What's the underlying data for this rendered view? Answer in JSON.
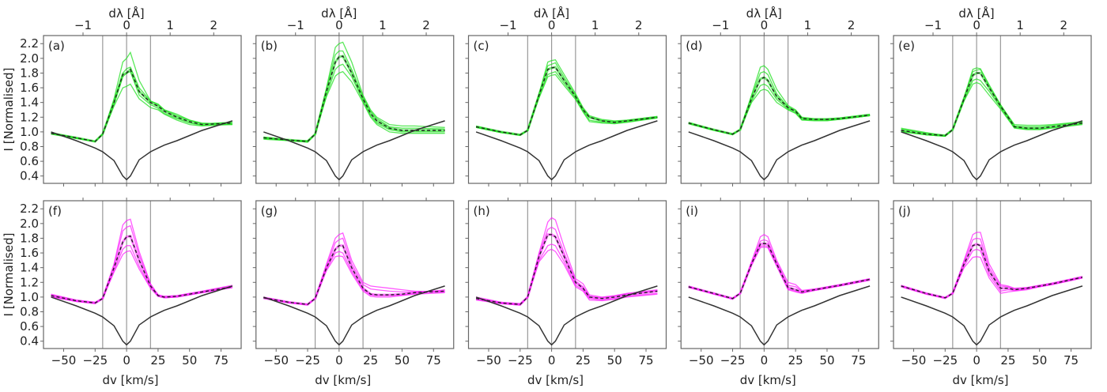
{
  "chart_data": {
    "type": "line",
    "layout": "2 rows x 5 columns of panels",
    "xlabel": "dv [km/s]",
    "ylabel": "I [Normalised]",
    "top_xlabel": "dλ [Å]",
    "xlim": [
      -66,
      91
    ],
    "ylim": [
      0.3,
      2.31
    ],
    "x_ticks": [
      -50,
      -25,
      0,
      25,
      50,
      75
    ],
    "x_tick_labels": [
      "−50",
      "−25",
      "0",
      "25",
      "50",
      "75"
    ],
    "top_ticks": [
      -1,
      0,
      1,
      2
    ],
    "top_tick_labels": [
      "−1",
      "0",
      "1",
      "2"
    ],
    "top_axis_km_s_per_angstrom": 34.6,
    "y_ticks": [
      0.4,
      0.6,
      0.8,
      1.0,
      1.2,
      1.4,
      1.6,
      1.8,
      2.0,
      2.2
    ],
    "y_tick_labels": [
      "0.4",
      "0.6",
      "0.8",
      "1.0",
      "1.2",
      "1.4",
      "1.6",
      "1.8",
      "2.0",
      "2.2"
    ],
    "vertical_lines_dv": [
      -19,
      0,
      19
    ],
    "grid": false,
    "colors": {
      "top_row_profiles": "#22e022",
      "bottom_row_profiles": "#ff22ff",
      "mean": "#222222",
      "reference": "#333333",
      "vlines": "#999999"
    },
    "dv": [
      -60,
      -40,
      -25,
      -19,
      -10,
      -3,
      0,
      3,
      10,
      19,
      25,
      30,
      40,
      50,
      60,
      84
    ],
    "reference": [
      1.0,
      0.88,
      0.78,
      0.73,
      0.61,
      0.4,
      0.35,
      0.4,
      0.62,
      0.73,
      0.78,
      0.82,
      0.88,
      0.95,
      1.02,
      1.15
    ],
    "panels": [
      {
        "label": "(a)",
        "row": 0,
        "mean": [
          0.98,
          0.92,
          0.87,
          0.97,
          1.4,
          1.78,
          1.8,
          1.85,
          1.55,
          1.4,
          1.35,
          1.28,
          1.2,
          1.14,
          1.1,
          1.12
        ],
        "profiles": [
          [
            0.99,
            0.92,
            0.87,
            0.97,
            1.45,
            1.95,
            2.0,
            2.08,
            1.7,
            1.42,
            1.37,
            1.3,
            1.22,
            1.16,
            1.12,
            1.1
          ],
          [
            0.97,
            0.91,
            0.87,
            0.97,
            1.35,
            1.6,
            1.62,
            1.65,
            1.45,
            1.33,
            1.3,
            1.24,
            1.16,
            1.1,
            1.08,
            1.1
          ],
          [
            0.98,
            0.92,
            0.87,
            0.97,
            1.42,
            1.8,
            1.86,
            1.88,
            1.6,
            1.42,
            1.38,
            1.3,
            1.24,
            1.16,
            1.11,
            1.13
          ],
          [
            0.98,
            0.91,
            0.87,
            0.97,
            1.38,
            1.75,
            1.8,
            1.82,
            1.5,
            1.37,
            1.32,
            1.25,
            1.18,
            1.12,
            1.09,
            1.11
          ]
        ]
      },
      {
        "label": "(b)",
        "row": 0,
        "mean": [
          0.92,
          0.89,
          0.87,
          0.97,
          1.55,
          1.95,
          2.02,
          2.03,
          1.8,
          1.45,
          1.25,
          1.15,
          1.05,
          1.02,
          1.02,
          1.02
        ],
        "profiles": [
          [
            0.93,
            0.89,
            0.88,
            0.97,
            1.6,
            2.15,
            2.2,
            2.22,
            1.95,
            1.5,
            1.3,
            1.2,
            1.1,
            1.08,
            1.08,
            1.06
          ],
          [
            0.92,
            0.88,
            0.87,
            0.97,
            1.58,
            2.05,
            2.1,
            2.1,
            1.85,
            1.48,
            1.28,
            1.18,
            1.07,
            1.05,
            1.05,
            1.04
          ],
          [
            0.91,
            0.89,
            0.87,
            0.97,
            1.5,
            1.85,
            1.9,
            1.92,
            1.75,
            1.42,
            1.22,
            1.12,
            1.03,
            1.0,
            1.0,
            1.0
          ],
          [
            0.9,
            0.88,
            0.86,
            0.97,
            1.48,
            1.76,
            1.8,
            1.82,
            1.68,
            1.4,
            1.2,
            1.1,
            1.0,
            0.98,
            0.98,
            0.98
          ]
        ]
      },
      {
        "label": "(c)",
        "row": 0,
        "mean": [
          1.07,
          1.0,
          0.96,
          1.02,
          1.5,
          1.85,
          1.87,
          1.88,
          1.7,
          1.48,
          1.3,
          1.2,
          1.15,
          1.13,
          1.15,
          1.2
        ],
        "profiles": [
          [
            1.08,
            1.0,
            0.96,
            1.02,
            1.52,
            1.95,
            1.97,
            1.98,
            1.78,
            1.52,
            1.33,
            1.22,
            1.17,
            1.15,
            1.16,
            1.21
          ],
          [
            1.07,
            1.0,
            0.96,
            1.02,
            1.52,
            1.9,
            1.92,
            1.94,
            1.74,
            1.5,
            1.31,
            1.2,
            1.15,
            1.14,
            1.15,
            1.2
          ],
          [
            1.06,
            0.99,
            0.96,
            1.02,
            1.48,
            1.78,
            1.8,
            1.82,
            1.66,
            1.46,
            1.28,
            1.16,
            1.13,
            1.12,
            1.14,
            1.19
          ],
          [
            1.06,
            0.99,
            0.95,
            1.02,
            1.46,
            1.75,
            1.77,
            1.78,
            1.63,
            1.44,
            1.27,
            1.14,
            1.12,
            1.11,
            1.13,
            1.19
          ]
        ]
      },
      {
        "label": "(d)",
        "row": 0,
        "mean": [
          1.12,
          1.03,
          0.97,
          1.03,
          1.45,
          1.72,
          1.74,
          1.7,
          1.48,
          1.33,
          1.28,
          1.18,
          1.17,
          1.17,
          1.18,
          1.23
        ],
        "profiles": [
          [
            1.13,
            1.03,
            0.97,
            1.03,
            1.5,
            1.88,
            1.9,
            1.85,
            1.58,
            1.36,
            1.3,
            1.2,
            1.18,
            1.18,
            1.19,
            1.24
          ],
          [
            1.12,
            1.03,
            0.97,
            1.03,
            1.48,
            1.8,
            1.82,
            1.78,
            1.52,
            1.34,
            1.29,
            1.19,
            1.17,
            1.17,
            1.18,
            1.23
          ],
          [
            1.12,
            1.02,
            0.97,
            1.03,
            1.42,
            1.63,
            1.65,
            1.62,
            1.44,
            1.31,
            1.26,
            1.17,
            1.16,
            1.16,
            1.17,
            1.22
          ],
          [
            1.11,
            1.02,
            0.96,
            1.03,
            1.4,
            1.56,
            1.58,
            1.56,
            1.4,
            1.3,
            1.25,
            1.16,
            1.15,
            1.15,
            1.17,
            1.22
          ]
        ]
      },
      {
        "label": "(e)",
        "row": 0,
        "mean": [
          1.02,
          0.97,
          0.95,
          1.03,
          1.45,
          1.77,
          1.8,
          1.8,
          1.6,
          1.35,
          1.2,
          1.07,
          1.05,
          1.05,
          1.07,
          1.12
        ],
        "profiles": [
          [
            1.05,
            0.99,
            0.95,
            1.03,
            1.47,
            1.85,
            1.87,
            1.86,
            1.64,
            1.37,
            1.22,
            1.1,
            1.09,
            1.09,
            1.1,
            1.14
          ],
          [
            1.04,
            0.98,
            0.95,
            1.03,
            1.46,
            1.82,
            1.84,
            1.85,
            1.62,
            1.36,
            1.21,
            1.08,
            1.07,
            1.07,
            1.09,
            1.13
          ],
          [
            1.01,
            0.96,
            0.94,
            1.03,
            1.43,
            1.7,
            1.72,
            1.7,
            1.55,
            1.33,
            1.18,
            1.06,
            1.04,
            1.04,
            1.06,
            1.11
          ],
          [
            1.0,
            0.96,
            0.94,
            1.03,
            1.42,
            1.65,
            1.67,
            1.65,
            1.5,
            1.31,
            1.17,
            1.05,
            1.03,
            1.03,
            1.05,
            1.1
          ]
        ]
      },
      {
        "label": "(f)",
        "row": 1,
        "mean": [
          1.02,
          0.95,
          0.92,
          0.98,
          1.4,
          1.75,
          1.82,
          1.83,
          1.5,
          1.15,
          1.02,
          1.0,
          1.01,
          1.04,
          1.07,
          1.14
        ],
        "profiles": [
          [
            1.04,
            0.96,
            0.93,
            0.98,
            1.45,
            1.98,
            2.04,
            2.06,
            1.62,
            1.18,
            1.03,
            1.01,
            1.02,
            1.05,
            1.08,
            1.16
          ],
          [
            1.03,
            0.95,
            0.92,
            0.98,
            1.43,
            1.9,
            1.95,
            1.97,
            1.57,
            1.17,
            1.03,
            1.0,
            1.01,
            1.04,
            1.07,
            1.15
          ],
          [
            1.01,
            0.94,
            0.92,
            0.98,
            1.36,
            1.65,
            1.7,
            1.7,
            1.42,
            1.13,
            1.01,
            0.99,
            1.0,
            1.03,
            1.06,
            1.13
          ],
          [
            1.0,
            0.94,
            0.91,
            0.98,
            1.34,
            1.58,
            1.62,
            1.63,
            1.38,
            1.12,
            1.01,
            0.99,
            1.0,
            1.03,
            1.06,
            1.13
          ]
        ]
      },
      {
        "label": "(g)",
        "row": 1,
        "mean": [
          0.99,
          0.93,
          0.9,
          0.98,
          1.4,
          1.65,
          1.7,
          1.7,
          1.4,
          1.12,
          1.04,
          1.03,
          1.03,
          1.04,
          1.06,
          1.08
        ],
        "profiles": [
          [
            1.0,
            0.93,
            0.9,
            0.98,
            1.45,
            1.8,
            1.85,
            1.87,
            1.5,
            1.2,
            1.15,
            1.14,
            1.12,
            1.1,
            1.08,
            1.07
          ],
          [
            0.99,
            0.93,
            0.9,
            0.98,
            1.42,
            1.74,
            1.78,
            1.8,
            1.45,
            1.17,
            1.11,
            1.1,
            1.08,
            1.07,
            1.07,
            1.08
          ],
          [
            0.99,
            0.92,
            0.9,
            0.98,
            1.38,
            1.6,
            1.62,
            1.6,
            1.35,
            1.1,
            1.03,
            1.02,
            1.02,
            1.03,
            1.05,
            1.1
          ],
          [
            0.98,
            0.92,
            0.89,
            0.98,
            1.36,
            1.55,
            1.56,
            1.55,
            1.32,
            1.08,
            1.01,
            1.0,
            1.0,
            1.02,
            1.04,
            1.06
          ]
        ]
      },
      {
        "label": "(h)",
        "row": 1,
        "mean": [
          0.98,
          0.92,
          0.9,
          1.0,
          1.55,
          1.85,
          1.85,
          1.82,
          1.55,
          1.2,
          1.12,
          1.0,
          0.98,
          1.0,
          1.03,
          1.08
        ],
        "profiles": [
          [
            1.0,
            0.93,
            0.91,
            1.0,
            1.6,
            2.02,
            2.08,
            2.05,
            1.68,
            1.25,
            1.18,
            1.03,
            1.0,
            1.02,
            1.05,
            1.1
          ],
          [
            0.99,
            0.92,
            0.9,
            1.0,
            1.58,
            1.92,
            1.95,
            1.92,
            1.6,
            1.22,
            1.14,
            1.01,
            0.99,
            1.01,
            1.04,
            1.09
          ],
          [
            0.97,
            0.91,
            0.89,
            1.0,
            1.5,
            1.7,
            1.72,
            1.7,
            1.48,
            1.16,
            1.1,
            0.98,
            0.96,
            0.98,
            1.01,
            1.05
          ],
          [
            0.96,
            0.91,
            0.89,
            1.0,
            1.48,
            1.63,
            1.65,
            1.62,
            1.44,
            1.14,
            1.08,
            0.96,
            0.95,
            0.97,
            1.0,
            1.04
          ]
        ]
      },
      {
        "label": "(i)",
        "row": 1,
        "mean": [
          1.14,
          1.05,
          0.98,
          1.05,
          1.45,
          1.72,
          1.73,
          1.72,
          1.45,
          1.13,
          1.1,
          1.07,
          1.1,
          1.13,
          1.16,
          1.24
        ],
        "profiles": [
          [
            1.15,
            1.05,
            0.98,
            1.05,
            1.48,
            1.82,
            1.85,
            1.82,
            1.5,
            1.2,
            1.17,
            1.09,
            1.11,
            1.14,
            1.17,
            1.25
          ],
          [
            1.14,
            1.05,
            0.98,
            1.05,
            1.47,
            1.76,
            1.78,
            1.76,
            1.47,
            1.16,
            1.14,
            1.08,
            1.1,
            1.13,
            1.16,
            1.24
          ],
          [
            1.14,
            1.04,
            0.98,
            1.05,
            1.44,
            1.69,
            1.7,
            1.69,
            1.43,
            1.11,
            1.08,
            1.06,
            1.09,
            1.12,
            1.15,
            1.23
          ],
          [
            1.13,
            1.04,
            0.97,
            1.05,
            1.43,
            1.67,
            1.68,
            1.67,
            1.42,
            1.1,
            1.07,
            1.05,
            1.09,
            1.12,
            1.15,
            1.23
          ]
        ]
      },
      {
        "label": "(j)",
        "row": 1,
        "mean": [
          1.15,
          1.05,
          0.99,
          1.05,
          1.45,
          1.7,
          1.72,
          1.7,
          1.35,
          1.12,
          1.12,
          1.1,
          1.12,
          1.15,
          1.18,
          1.27
        ],
        "profiles": [
          [
            1.16,
            1.05,
            0.99,
            1.05,
            1.5,
            1.85,
            1.88,
            1.88,
            1.45,
            1.17,
            1.15,
            1.12,
            1.13,
            1.16,
            1.19,
            1.28
          ],
          [
            1.15,
            1.05,
            0.99,
            1.05,
            1.48,
            1.78,
            1.8,
            1.79,
            1.4,
            1.15,
            1.14,
            1.11,
            1.12,
            1.15,
            1.18,
            1.27
          ],
          [
            1.15,
            1.04,
            0.99,
            1.05,
            1.42,
            1.63,
            1.65,
            1.63,
            1.3,
            1.08,
            1.1,
            1.09,
            1.11,
            1.14,
            1.17,
            1.26
          ],
          [
            1.14,
            1.04,
            0.98,
            1.05,
            1.4,
            1.54,
            1.55,
            1.54,
            1.26,
            1.05,
            1.07,
            1.08,
            1.1,
            1.14,
            1.17,
            1.26
          ]
        ]
      }
    ]
  }
}
